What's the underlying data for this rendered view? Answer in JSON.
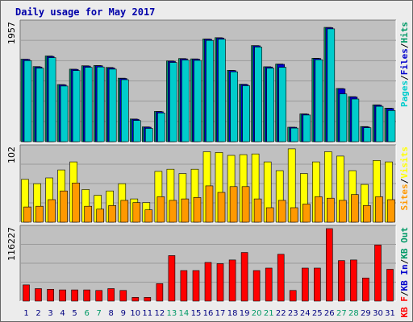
{
  "page_title": "Daily usage for May 2017",
  "colors": {
    "hits": "#009966",
    "files": "#0000cc",
    "pages": "#00cccc",
    "visits": "#ffff00",
    "sites": "#ff9900",
    "kb_f": "#ff0000",
    "kb_in": "#0000cc",
    "kb_out": "#009966",
    "weekend_label": "#009966",
    "weekday_label": "#000080"
  },
  "chart_data": [
    {
      "type": "bar",
      "panel": "hits-files-pages",
      "scale_label": "1957",
      "legend": [
        "Pages",
        "Files",
        "Hits"
      ],
      "legend_separator": "/",
      "categories": [
        "1",
        "2",
        "3",
        "4",
        "5",
        "6",
        "7",
        "8",
        "9",
        "10",
        "11",
        "12",
        "13",
        "14",
        "15",
        "16",
        "17",
        "18",
        "19",
        "20",
        "21",
        "22",
        "23",
        "24",
        "25",
        "26",
        "27",
        "28",
        "29",
        "30",
        "31"
      ],
      "weekend_days": [
        "6",
        "7",
        "13",
        "14",
        "20",
        "21",
        "27",
        "28"
      ],
      "ylim": [
        0,
        1957
      ],
      "series": [
        {
          "name": "Hits",
          "values": [
            1365,
            1242,
            1418,
            945,
            1200,
            1255,
            1260,
            1228,
            1050,
            375,
            245,
            500,
            1335,
            1375,
            1370,
            1700,
            1720,
            1180,
            950,
            1590,
            1240,
            1285,
            240,
            460,
            1380,
            1890,
            880,
            745,
            250,
            610,
            555
          ]
        },
        {
          "name": "Files",
          "values": [
            1360,
            1235,
            1410,
            940,
            1195,
            1250,
            1255,
            1220,
            1045,
            370,
            240,
            495,
            1330,
            1370,
            1365,
            1695,
            1715,
            1175,
            945,
            1585,
            1235,
            1280,
            238,
            455,
            1375,
            1885,
            875,
            740,
            245,
            605,
            550
          ]
        },
        {
          "name": "Pages",
          "values": [
            1340,
            1215,
            1390,
            920,
            1175,
            1230,
            1235,
            1200,
            1025,
            350,
            220,
            475,
            1310,
            1350,
            1345,
            1675,
            1695,
            1155,
            925,
            1565,
            1215,
            1230,
            225,
            440,
            1355,
            1865,
            790,
            705,
            230,
            585,
            515
          ]
        }
      ]
    },
    {
      "type": "bar",
      "panel": "visits-sites",
      "scale_label": "102",
      "legend": [
        "Sites",
        "Visits"
      ],
      "legend_separator": "/",
      "ylim": [
        0,
        102
      ],
      "series": [
        {
          "name": "Visits",
          "values": [
            59,
            53,
            61,
            72,
            83,
            45,
            37,
            43,
            53,
            32,
            27,
            70,
            73,
            67,
            73,
            97,
            96,
            92,
            93,
            94,
            83,
            71,
            101,
            67,
            83,
            97,
            91,
            71,
            52,
            85,
            83
          ]
        },
        {
          "name": "Sites",
          "values": [
            21,
            22,
            31,
            43,
            54,
            22,
            18,
            23,
            30,
            27,
            17,
            35,
            30,
            32,
            34,
            50,
            41,
            49,
            49,
            32,
            20,
            30,
            20,
            25,
            35,
            33,
            30,
            38,
            23,
            35,
            31
          ]
        }
      ]
    },
    {
      "type": "bar",
      "panel": "kbytes",
      "scale_label": "116227",
      "legend": [
        "KB F",
        "KB In",
        "KB Out"
      ],
      "legend_separator": "/",
      "ylim": [
        0,
        116227
      ],
      "series": [
        {
          "name": "KB F",
          "values": [
            26000,
            20000,
            19000,
            18000,
            18000,
            18000,
            17000,
            20000,
            17000,
            6000,
            6000,
            28000,
            73000,
            49000,
            49000,
            62000,
            60000,
            66000,
            78000,
            49000,
            53000,
            75000,
            17000,
            53000,
            53000,
            116227,
            65000,
            66000,
            37000,
            90000,
            51000
          ]
        }
      ]
    }
  ]
}
